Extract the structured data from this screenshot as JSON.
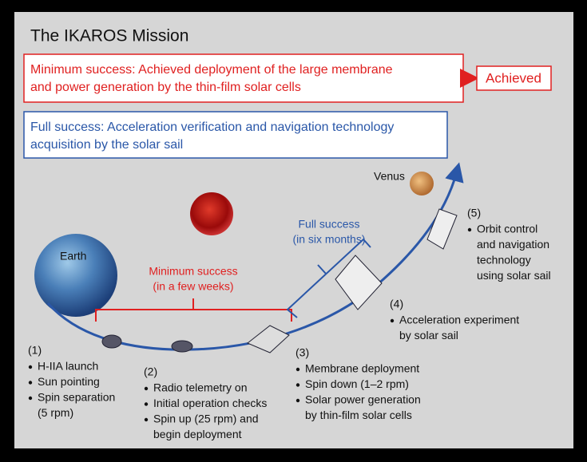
{
  "title": "The IKAROS Mission",
  "minimum_box": {
    "lines": [
      "Minimum success: Achieved deployment of the large membrane",
      "and power generation by the thin-film solar cells"
    ]
  },
  "achieved": "Achieved",
  "full_box": {
    "lines": [
      "Full success: Acceleration verification and navigation technology",
      "acquisition by the solar sail"
    ]
  },
  "labels": {
    "earth": "Earth",
    "venus": "Venus"
  },
  "brackets": {
    "minimum": [
      "Minimum success",
      "(in a few weeks)"
    ],
    "full": [
      "Full success",
      "(in six months)"
    ]
  },
  "steps": [
    {
      "number": "(1)",
      "items": [
        [
          "H-IIA launch"
        ],
        [
          "Sun pointing"
        ],
        [
          "Spin separation",
          "(5 rpm)"
        ]
      ]
    },
    {
      "number": "(2)",
      "items": [
        [
          "Radio telemetry on"
        ],
        [
          "Initial operation checks"
        ],
        [
          "Spin up (25 rpm) and",
          "begin deployment"
        ]
      ]
    },
    {
      "number": "(3)",
      "items": [
        [
          "Membrane deployment"
        ],
        [
          "Spin down (1–2 rpm)"
        ],
        [
          "Solar power generation",
          "by thin-film solar cells"
        ]
      ]
    },
    {
      "number": "(4)",
      "items": [
        [
          "Acceleration experiment",
          "by solar sail"
        ]
      ]
    },
    {
      "number": "(5)",
      "items": [
        [
          "Orbit control",
          "and navigation",
          "technology",
          "using solar sail"
        ]
      ]
    }
  ]
}
